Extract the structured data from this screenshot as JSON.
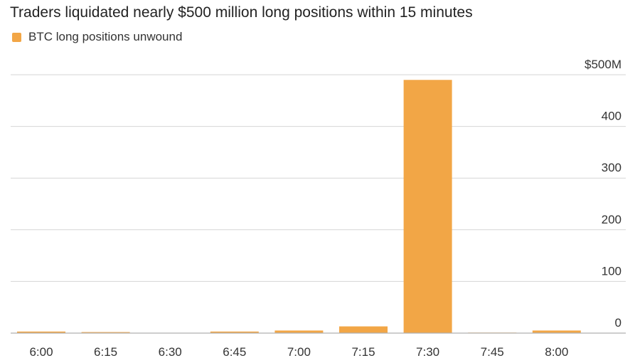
{
  "title": "Traders liquidated nearly $500 million long positions within 15 minutes",
  "legend": {
    "label": "BTC long positions unwound",
    "color": "#f2a646"
  },
  "colors": {
    "gridline": "#d6d6d6",
    "baseline": "#b0b0b0",
    "bar": "#f2a646"
  },
  "chart_data": {
    "type": "bar",
    "categories": [
      "6:00",
      "6:15",
      "6:30",
      "6:45",
      "7:00",
      "7:15",
      "7:30",
      "7:45",
      "8:00"
    ],
    "series": [
      {
        "name": "BTC long positions unwound",
        "values": [
          3,
          2,
          0,
          3,
          5,
          13,
          490,
          1,
          5
        ]
      }
    ],
    "ylim": [
      0,
      500
    ],
    "yticks": [
      0,
      100,
      200,
      300,
      400,
      500
    ],
    "ytick_labels": [
      "0",
      "100",
      "200",
      "300",
      "400",
      "$500M"
    ],
    "grid": true,
    "y_axis_position": "right",
    "legend_position": "top-left"
  }
}
